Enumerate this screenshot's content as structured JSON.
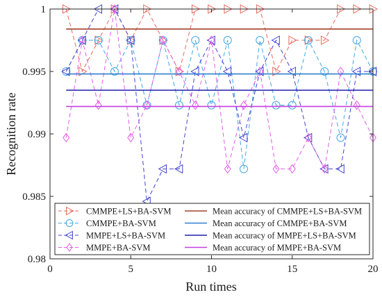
{
  "chart_data": {
    "type": "line",
    "title": "",
    "xlabel": "Run times",
    "ylabel": "Recognition rate",
    "xlim": [
      0,
      20
    ],
    "ylim": [
      0.98,
      1.0
    ],
    "x_ticks": [
      "0",
      "5",
      "10",
      "15",
      "20"
    ],
    "y_ticks": [
      "0.98",
      "0.985",
      "0.99",
      "0.995",
      "1"
    ],
    "x": [
      1,
      2,
      3,
      4,
      5,
      6,
      7,
      8,
      9,
      10,
      11,
      12,
      13,
      14,
      15,
      16,
      17,
      18,
      19,
      20
    ],
    "grid": false,
    "legend_position": "bottom",
    "series": [
      {
        "name": "CMMPE+LS+BA-SVM",
        "color": "#e8675a",
        "marker": "triangle-right",
        "dashed": true,
        "values": [
          1.0,
          0.995,
          0.9975,
          1.0,
          0.9975,
          1.0,
          0.9975,
          0.995,
          1.0,
          1.0,
          1.0,
          1.0,
          1.0,
          0.995,
          0.9975,
          0.9975,
          0.9975,
          1.0,
          1.0,
          1.0
        ]
      },
      {
        "name": "CMMPE+BA-SVM",
        "color": "#3fa6e3",
        "marker": "circle",
        "dashed": true,
        "values": [
          0.995,
          0.9975,
          0.9975,
          0.995,
          0.9975,
          0.9923,
          0.9975,
          0.9923,
          0.9975,
          0.9923,
          0.9975,
          0.9872,
          0.9975,
          0.9923,
          0.9923,
          0.9975,
          0.995,
          0.9897,
          0.9975,
          0.995
        ]
      },
      {
        "name": "MMPE+LS+BA-SVM",
        "color": "#4141cf",
        "marker": "triangle-left",
        "dashed": true,
        "values": [
          0.995,
          0.9975,
          1.0,
          1.0,
          0.9975,
          0.9846,
          0.9872,
          0.9872,
          0.995,
          0.9975,
          0.995,
          0.9897,
          0.995,
          0.9975,
          0.995,
          0.9897,
          0.9872,
          0.9872,
          0.995,
          0.995
        ]
      },
      {
        "name": "MMPE+BA-SVM",
        "color": "#e05de6",
        "marker": "diamond",
        "dashed": true,
        "values": [
          0.9897,
          0.9975,
          0.9923,
          1.0,
          0.9897,
          0.9923,
          0.9975,
          0.995,
          0.9923,
          0.9975,
          0.9872,
          0.9923,
          0.995,
          0.9872,
          0.9872,
          0.9897,
          0.9872,
          0.995,
          0.9923,
          0.9897
        ]
      }
    ],
    "mean_lines": [
      {
        "name": "Mean accuracy of CMMPE+LS+BA-SVM",
        "color": "#a0402a",
        "value": 0.9984
      },
      {
        "name": "Mean accuracy of CMMPE+BA-SVM",
        "color": "#2f7fd0",
        "value": 0.9948
      },
      {
        "name": "Mean accuracy of MMPE+LS+BA-SVM",
        "color": "#1e1eaa",
        "value": 0.9935
      },
      {
        "name": "Mean accuracy of MMPE+BA-SVM",
        "color": "#c43fe0",
        "value": 0.9922
      }
    ]
  }
}
